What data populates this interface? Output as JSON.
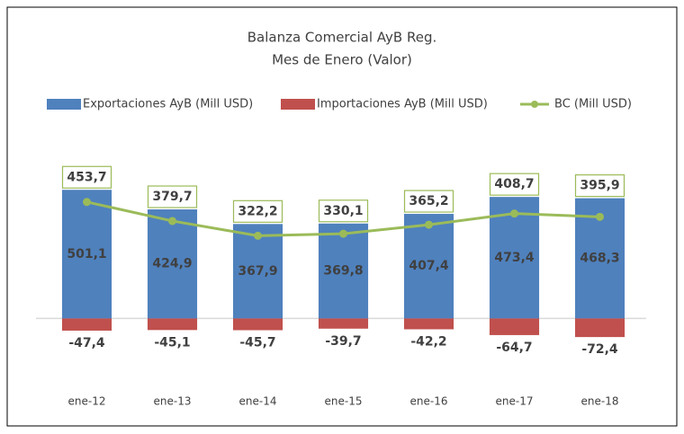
{
  "chart_data": {
    "type": "bar",
    "title": "Balanza Comercial AyB Reg.",
    "subtitle": "Mes de Enero (Valor)",
    "categories": [
      "ene-12",
      "ene-13",
      "ene-14",
      "ene-15",
      "ene-16",
      "ene-17",
      "ene-18"
    ],
    "series": [
      {
        "name": "Exportaciones AyB (Mill USD)",
        "type": "bar",
        "color": "#4f81bd",
        "values": [
          501.1,
          424.9,
          367.9,
          369.8,
          407.4,
          473.4,
          468.3
        ],
        "value_labels": [
          "501,1",
          "424,9",
          "367,9",
          "369,8",
          "407,4",
          "473,4",
          "468,3"
        ]
      },
      {
        "name": "Importaciones AyB (Mill USD)",
        "type": "bar",
        "color": "#c0504d",
        "values": [
          -47.4,
          -45.1,
          -45.7,
          -39.7,
          -42.2,
          -64.7,
          -72.4
        ],
        "value_labels": [
          "-47,4",
          "-45,1",
          "-45,7",
          "-39,7",
          "-42,2",
          "-64,7",
          "-72,4"
        ]
      },
      {
        "name": "BC (Mill USD)",
        "type": "line",
        "color": "#9bbb59",
        "values": [
          453.7,
          379.7,
          322.2,
          330.1,
          365.2,
          408.7,
          395.9
        ],
        "value_labels": [
          "453,7",
          "379,7",
          "322,2",
          "330,1",
          "365,2",
          "408,7",
          "395,9"
        ]
      }
    ],
    "ylim": [
      -100,
      600
    ],
    "legend": "top"
  }
}
